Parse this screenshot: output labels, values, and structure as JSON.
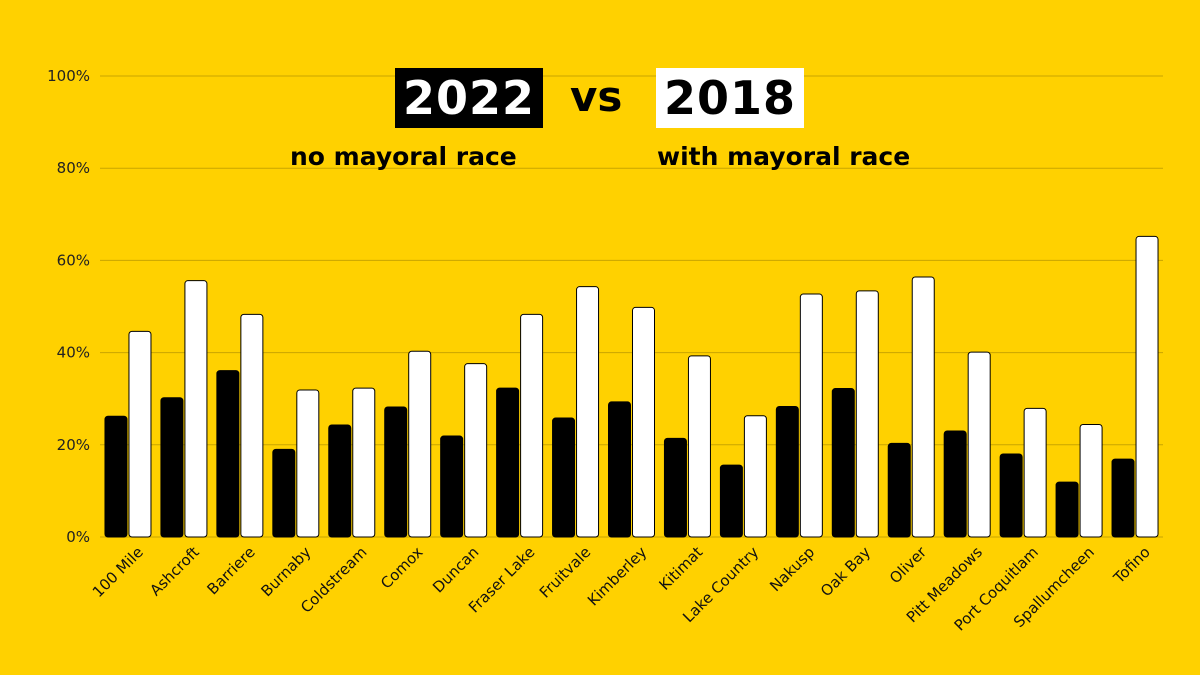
{
  "chart_data": {
    "type": "bar",
    "title_left": "2022",
    "title_vs": "vs",
    "title_right": "2018",
    "subtitle_left": "no mayoral race",
    "subtitle_right": "with mayoral race",
    "categories": [
      "100 Mile",
      "Ashcroft",
      "Barriere",
      "Burnaby",
      "Coldstream",
      "Comox",
      "Duncan",
      "Fraser Lake",
      "Fruitvale",
      "Kimberley",
      "Kitimat",
      "Lake Country",
      "Nakusp",
      "Oak Bay",
      "Oliver",
      "Pitt Meadows",
      "Port Coquitlam",
      "Spallumcheen",
      "Tofino"
    ],
    "series": [
      {
        "color": "#000000",
        "values": [
          26.2,
          30.2,
          36.1,
          19.0,
          24.3,
          28.2,
          21.9,
          32.3,
          25.8,
          29.3,
          21.4,
          15.6,
          28.3,
          32.2,
          20.3,
          23.0,
          18.0,
          11.9,
          16.9
        ]
      },
      {
        "color": "#FFFFFF",
        "values": [
          44.6,
          55.6,
          48.3,
          31.9,
          32.3,
          40.3,
          37.6,
          48.3,
          54.3,
          49.8,
          39.3,
          26.3,
          52.7,
          53.4,
          56.4,
          40.1,
          27.9,
          24.4,
          65.2
        ]
      }
    ],
    "yticks": [
      "0%",
      "20%",
      "40%",
      "60%",
      "80%",
      "100%"
    ],
    "ylim": [
      0,
      100
    ],
    "grid": true,
    "background": "#FFD100"
  }
}
